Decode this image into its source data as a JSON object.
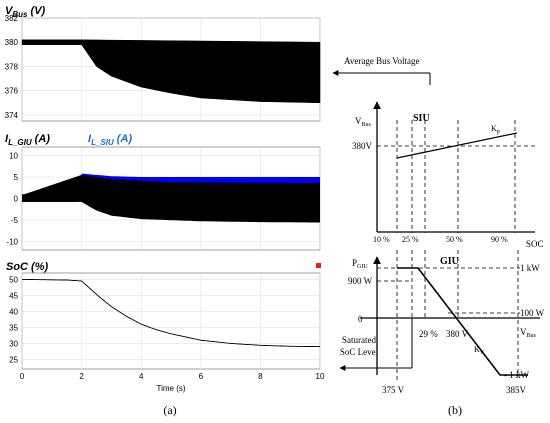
{
  "chart_data": [
    {
      "type": "line",
      "title": "V_Bus (V)",
      "title_main": "V",
      "title_sub": "Bus",
      "title_unit": " (V)",
      "xlim": [
        0,
        10
      ],
      "ylim": [
        373.5,
        382
      ],
      "yticks": [
        374,
        376,
        378,
        380,
        382
      ],
      "grid": true,
      "series": [
        {
          "envelope": "upper",
          "x": [
            0,
            2,
            10
          ],
          "y": [
            380.2,
            380.2,
            380.0
          ]
        },
        {
          "envelope": "lower",
          "x": [
            0,
            2,
            2.5,
            3,
            4,
            5,
            6,
            8,
            10
          ],
          "y": [
            379.8,
            379.8,
            378.0,
            377.2,
            376.3,
            375.8,
            375.4,
            375.1,
            375.0
          ]
        }
      ]
    },
    {
      "type": "line",
      "title_a_main": "I",
      "title_a_sub": "L_GIU",
      "title_a_unit": " (A)",
      "title_b_main": "I",
      "title_b_sub": "L_SIU",
      "title_b_unit": " (A)",
      "colors": {
        "giu": "#000000",
        "siu": "#0000ff"
      },
      "xlim": [
        0,
        10
      ],
      "ylim": [
        -12,
        12
      ],
      "yticks": [
        -10,
        -5,
        0,
        5,
        10
      ],
      "grid": true,
      "series": [
        {
          "name": "I_L_SIU",
          "envelope_upper": {
            "x": [
              0,
              1.9,
              2,
              3,
              4,
              6,
              8,
              10
            ],
            "y": [
              1.0,
              1.0,
              5.8,
              5.2,
              5.0,
              5.0,
              5.0,
              5.0
            ]
          },
          "envelope_lower": {
            "x": [
              0,
              1.9,
              2,
              3,
              4,
              6,
              8,
              10
            ],
            "y": [
              -0.8,
              -0.8,
              1.2,
              1.0,
              0.2,
              -0.3,
              -0.5,
              -0.6
            ]
          }
        },
        {
          "name": "I_L_GIU",
          "envelope_upper": {
            "x": [
              0,
              2,
              3,
              5,
              10
            ],
            "y": [
              0.8,
              5.5,
              4.5,
              3.8,
              3.6
            ]
          },
          "envelope_lower": {
            "x": [
              0,
              2,
              2.5,
              3,
              4,
              6,
              8,
              10
            ],
            "y": [
              -0.8,
              -0.8,
              -2.8,
              -4.0,
              -4.8,
              -5.3,
              -5.5,
              -5.6
            ]
          }
        }
      ]
    },
    {
      "type": "line",
      "title": "SoC (%)",
      "xlabel": "Time (s)",
      "xlim": [
        0,
        10
      ],
      "xticks": [
        0,
        2,
        4,
        6,
        8,
        10
      ],
      "ylim": [
        22,
        52
      ],
      "yticks": [
        25,
        30,
        35,
        40,
        45,
        50
      ],
      "grid": true,
      "series": [
        {
          "x": [
            0,
            1.5,
            2,
            2.3,
            2.6,
            3,
            3.5,
            4,
            4.5,
            5,
            6,
            7,
            8,
            9,
            10
          ],
          "y": [
            50,
            49.8,
            49.5,
            47.0,
            44.5,
            41.5,
            38.5,
            36.0,
            34.3,
            33.0,
            31.0,
            30.0,
            29.4,
            29.1,
            29.0
          ]
        }
      ]
    }
  ],
  "labels": {
    "panel_a": "(a)",
    "panel_b": "(b)",
    "avg_bus_voltage": "Average Bus Voltage",
    "saturated_line1": "Saturated",
    "saturated_line2": "SoC Level"
  },
  "diagram": {
    "siu_label": "SIU",
    "giu_label": "GIU",
    "vbus_axis_main": "V",
    "vbus_axis_sub": "Bus",
    "v380_label": "380V",
    "kp_main": "K",
    "kp_sub": "p",
    "soc_ticks": [
      "10 %",
      "25 %",
      "50 %",
      "90 %"
    ],
    "soc_axis": "SOC",
    "pgiu_main": "P",
    "pgiu_sub": "GIU",
    "p900": "900 W",
    "zero": "0",
    "pct29": "29 %",
    "v380b": "380 V",
    "vbus2_main": "V",
    "vbus2_sub": "Bus",
    "kv_main": "K",
    "kv_sub": "V",
    "right_1kw": "1 kW",
    "right_100w": "100 W",
    "right_neg1kw": "- 1 kW",
    "v375": "375 V",
    "v385": "385V"
  }
}
